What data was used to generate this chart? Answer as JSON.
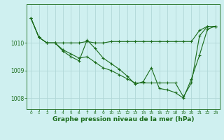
{
  "bg_color": "#cff0f0",
  "grid_color": "#b0d8d8",
  "line_color": "#1a6b1a",
  "xlabel": "Graphe pression niveau de la mer (hPa)",
  "xlabel_fontsize": 6.5,
  "ylabel_ticks": [
    1008,
    1009,
    1010
  ],
  "xlim": [
    -0.5,
    23.5
  ],
  "ylim": [
    1007.6,
    1011.4
  ],
  "series1_x": [
    0,
    1,
    2,
    3,
    4,
    5,
    6,
    7,
    8,
    9,
    10,
    11,
    12,
    13,
    14,
    15,
    16,
    17,
    18,
    19,
    20,
    21,
    22,
    23
  ],
  "series1_y": [
    1010.9,
    1010.2,
    1010.0,
    1010.0,
    1010.0,
    1010.0,
    1010.0,
    1010.05,
    1010.0,
    1010.0,
    1010.05,
    1010.05,
    1010.05,
    1010.05,
    1010.05,
    1010.05,
    1010.05,
    1010.05,
    1010.05,
    1010.05,
    1010.05,
    1010.45,
    1010.6,
    1010.6
  ],
  "series2_x": [
    0,
    1,
    2,
    3,
    4,
    5,
    6,
    7,
    8,
    9,
    10,
    11,
    12,
    13,
    14,
    15,
    16,
    17,
    18,
    19,
    20,
    21,
    22,
    23
  ],
  "series2_y": [
    1010.9,
    1010.2,
    1010.0,
    1010.0,
    1009.75,
    1009.6,
    1009.45,
    1009.5,
    1009.3,
    1009.1,
    1009.0,
    1008.85,
    1008.7,
    1008.55,
    1008.55,
    1008.55,
    1008.55,
    1008.55,
    1008.55,
    1008.05,
    1008.55,
    1010.25,
    1010.6,
    1010.6
  ],
  "series3_x": [
    0,
    1,
    2,
    3,
    4,
    5,
    6,
    7,
    8,
    9,
    10,
    11,
    12,
    13,
    14,
    15,
    16,
    17,
    18,
    19,
    20,
    21,
    22,
    23
  ],
  "series3_y": [
    1010.9,
    1010.2,
    1010.0,
    1010.0,
    1009.7,
    1009.5,
    1009.35,
    1010.1,
    1009.8,
    1009.45,
    1009.25,
    1009.05,
    1008.8,
    1008.5,
    1008.6,
    1009.1,
    1008.35,
    1008.3,
    1008.2,
    1008.0,
    1008.7,
    1009.55,
    1010.5,
    1010.6
  ]
}
